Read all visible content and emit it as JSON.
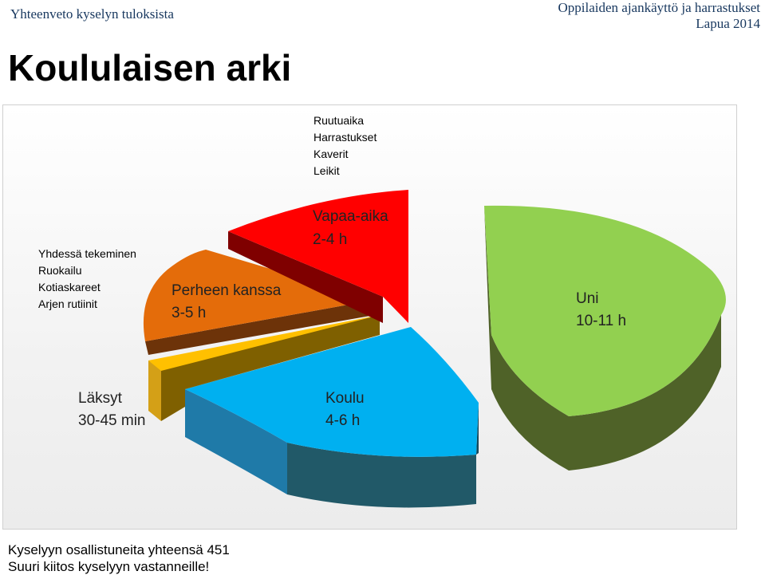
{
  "header": {
    "left_title": "Yhteenveto kyselyn tuloksista",
    "right_line1": "Oppilaiden ajankäyttö ja harrastukset",
    "right_line2": "Lapua 2014"
  },
  "title": "Koululaisen arki",
  "chart_data": {
    "type": "pie",
    "style": "3d-exploded",
    "slices": [
      {
        "label": "Uni",
        "value_text": "10-11 h",
        "color": "#92d050",
        "side": "#4f6228"
      },
      {
        "label": "Koulu",
        "value_text": "4-6 h",
        "color": "#00b0f0",
        "side": "#215968"
      },
      {
        "label": "Läksyt",
        "value_text": "30-45 min",
        "color": "#ffc000",
        "side": "#7f6000"
      },
      {
        "label": "Perheen kanssa",
        "value_text": "3-5 h",
        "color": "#e46c0a",
        "side": "#7f3f0a"
      },
      {
        "label": "Vapaa-aika",
        "value_text": "2-4 h",
        "color": "#ff0000",
        "side": "#7f0000"
      }
    ],
    "annotations": {
      "vapaa_aika": [
        "Ruutuaika",
        "Harrastukset",
        "Kaverit",
        "Leikit"
      ],
      "perheen_kanssa": [
        "Yhdessä tekeminen",
        "Ruokailu",
        "Kotiaskareet",
        "Arjen rutiinit"
      ]
    }
  },
  "footer": {
    "line1": "Kyselyyn osallistuneita yhteensä 451",
    "line2": "Suuri kiitos kyselyyn vastanneille!"
  }
}
